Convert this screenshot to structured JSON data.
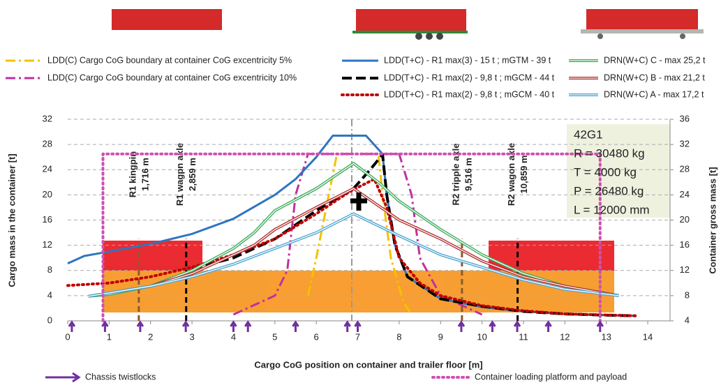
{
  "chart_data": {
    "type": "line",
    "xlabel": "Cargo CoG position on container and trailer floor [m]",
    "ylabel": "Cargo mass in the container [t]",
    "y2label": "Container gross mass [t]",
    "xlim": [
      0,
      14.5
    ],
    "xticks": [
      0,
      1,
      2,
      3,
      4,
      5,
      6,
      7,
      8,
      9,
      10,
      11,
      12,
      13,
      14
    ],
    "ylim": [
      0,
      32
    ],
    "yticks": [
      0,
      4,
      8,
      12,
      16,
      20,
      24,
      28,
      32
    ],
    "y2lim": [
      4,
      36
    ],
    "y2ticks": [
      4,
      8,
      12,
      16,
      20,
      24,
      28,
      32,
      36
    ],
    "grid": true,
    "series": [
      {
        "name": "LDD(C) Cargo CoG boundary at container CoG excentricity 5%",
        "color": "#f2c200",
        "style": "dashdot",
        "x": [
          5.8,
          6.0,
          6.3,
          6.5,
          7.5,
          7.6,
          7.8,
          8.1,
          8.3
        ],
        "values": [
          4,
          10,
          20,
          26.5,
          26.5,
          20,
          10,
          3,
          1
        ]
      },
      {
        "name": "LDD(C) Cargo CoG boundary at container CoG excentricity 10%",
        "color": "#c030a0",
        "style": "dashdot",
        "x": [
          4,
          5,
          5.3,
          5.5,
          5.8,
          8,
          8.3,
          8.5,
          9,
          10
        ],
        "values": [
          1,
          4,
          8,
          20,
          26.5,
          26.5,
          20,
          10,
          4,
          1
        ]
      },
      {
        "name": "LDD(T+C) - R1 max(3) - 15 t ; mGTM - 39 t",
        "color": "#2e75c0",
        "style": "solid",
        "x": [
          0,
          0.4,
          1,
          2,
          3,
          4,
          5,
          5.5,
          6,
          6.4,
          7.2,
          7.6,
          7.7,
          7.9,
          8.2,
          9,
          10,
          11,
          12,
          13,
          13.7
        ],
        "values": [
          9.1,
          10.3,
          11,
          12.2,
          13.8,
          16.2,
          20,
          22.5,
          26,
          29.4,
          29.4,
          26.5,
          20,
          12,
          7,
          3.5,
          2.2,
          1.5,
          1.1,
          0.9,
          0.8
        ]
      },
      {
        "name": "LDD(T+C) - R1 max(2) - 9,8 t ; mGCM - 44 t",
        "color": "#000000",
        "style": "dashed",
        "x": [
          3,
          4,
          5,
          6,
          6.9,
          7.3,
          7.6,
          7.7,
          7.9,
          8.2,
          9,
          10,
          11,
          12,
          13,
          13.7
        ],
        "values": [
          8.3,
          10,
          13,
          17.5,
          21,
          24,
          26.4,
          20,
          12,
          7,
          3.5,
          2.3,
          1.5,
          1.1,
          0.9,
          0.8
        ]
      },
      {
        "name": "LDD(T+C) - R1 max(2) - 9,8 t ; mGCM - 40 t",
        "color": "#c00000",
        "style": "dotted",
        "x": [
          0,
          1,
          2,
          3,
          4,
          5,
          6,
          6.8,
          7.4,
          7.7,
          8,
          8.5,
          9,
          10,
          11,
          12,
          13.7
        ],
        "values": [
          5.6,
          6,
          7,
          8.5,
          10.5,
          13,
          17,
          20.5,
          22.5,
          18,
          10,
          6,
          4,
          2.4,
          1.6,
          1.1,
          0.8
        ]
      },
      {
        "name": "DRN(W+C) C - max 25,2 t",
        "color": "#3caa5a",
        "style": "double",
        "x": [
          0.5,
          1,
          2,
          3,
          4,
          4.5,
          5,
          6,
          6.9,
          7.5,
          8,
          9,
          10,
          11,
          12,
          13.3
        ],
        "values": [
          3.9,
          4.2,
          5.5,
          8,
          11.5,
          14,
          17.5,
          21,
          25,
          22,
          19,
          14.5,
          10.5,
          7.5,
          5.5,
          4
        ]
      },
      {
        "name": "DRN(W+C) B - max 21,2 t",
        "color": "#b03030",
        "style": "double",
        "x": [
          0.5,
          2,
          3,
          4,
          4.5,
          5,
          6,
          6.9,
          8,
          9,
          10,
          11,
          12,
          13.3
        ],
        "values": [
          3.9,
          5.5,
          7.5,
          10.5,
          12,
          14.5,
          18,
          21,
          16,
          13,
          9.5,
          7,
          5.5,
          4
        ]
      },
      {
        "name": "DRN(W+C) A - max 17,2 t",
        "color": "#4aa6d0",
        "style": "double",
        "x": [
          0.5,
          2,
          3,
          4,
          5,
          6,
          6.9,
          8,
          9,
          10,
          11,
          12,
          13.3
        ],
        "values": [
          3.9,
          5.5,
          7,
          9,
          11.5,
          14,
          17,
          13.5,
          10.5,
          8.5,
          6.5,
          5,
          4
        ]
      },
      {
        "name": "Container loading platform and payload",
        "color": "#d050b0",
        "style": "dotted",
        "x": [
          0.85,
          0.85,
          12.85,
          12.85
        ],
        "values": [
          0,
          26.5,
          26.5,
          0
        ]
      }
    ],
    "twistlocks": {
      "name": "Chassis twistlocks",
      "color": "#7030a0",
      "x": [
        0.1,
        0.9,
        1.75,
        2.85,
        4.0,
        4.35,
        5.5,
        6.75,
        7.0,
        9.5,
        10.25,
        10.85,
        11.6,
        12.85
      ]
    },
    "annotations": [
      {
        "x": 1.716,
        "lines": [
          "R1 kingpin",
          "1,716 m"
        ],
        "color": "#8b5a2b"
      },
      {
        "x": 2.859,
        "lines": [
          "R1 wagpn axle",
          "2,859 m"
        ],
        "color": "#000000"
      },
      {
        "x": 9.516,
        "lines": [
          "R2 tripple axle",
          "9,516 m"
        ],
        "color": "#8b5a2b"
      },
      {
        "x": 10.859,
        "lines": [
          "R2 wagon axle",
          "10,859 m"
        ],
        "color": "#000000"
      }
    ],
    "info_box": [
      "42G1",
      "R = 30480 kg",
      "T = 4000 kg",
      "P = 26480 kg",
      "L = 12000 mm"
    ]
  }
}
